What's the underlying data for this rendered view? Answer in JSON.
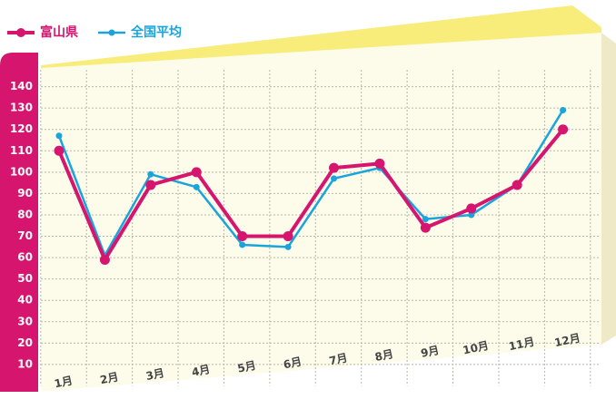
{
  "chart_data": {
    "type": "line",
    "categories": [
      "1月",
      "2月",
      "3月",
      "4月",
      "5月",
      "6月",
      "7月",
      "8月",
      "9月",
      "10月",
      "11月",
      "12月"
    ],
    "series": [
      {
        "name": "富山県",
        "color": "#d6156f",
        "values": [
          110,
          59,
          94,
          100,
          70,
          70,
          102,
          104,
          74,
          83,
          94,
          120
        ]
      },
      {
        "name": "全国平均",
        "color": "#1aa4dc",
        "values": [
          117,
          61,
          99,
          93,
          66,
          65,
          97,
          102,
          78,
          80,
          94,
          129
        ]
      }
    ],
    "ylim": [
      0,
      150
    ],
    "yticks": [
      10,
      20,
      30,
      40,
      50,
      60,
      70,
      80,
      90,
      100,
      110,
      120,
      130,
      140
    ],
    "grid": true
  }
}
